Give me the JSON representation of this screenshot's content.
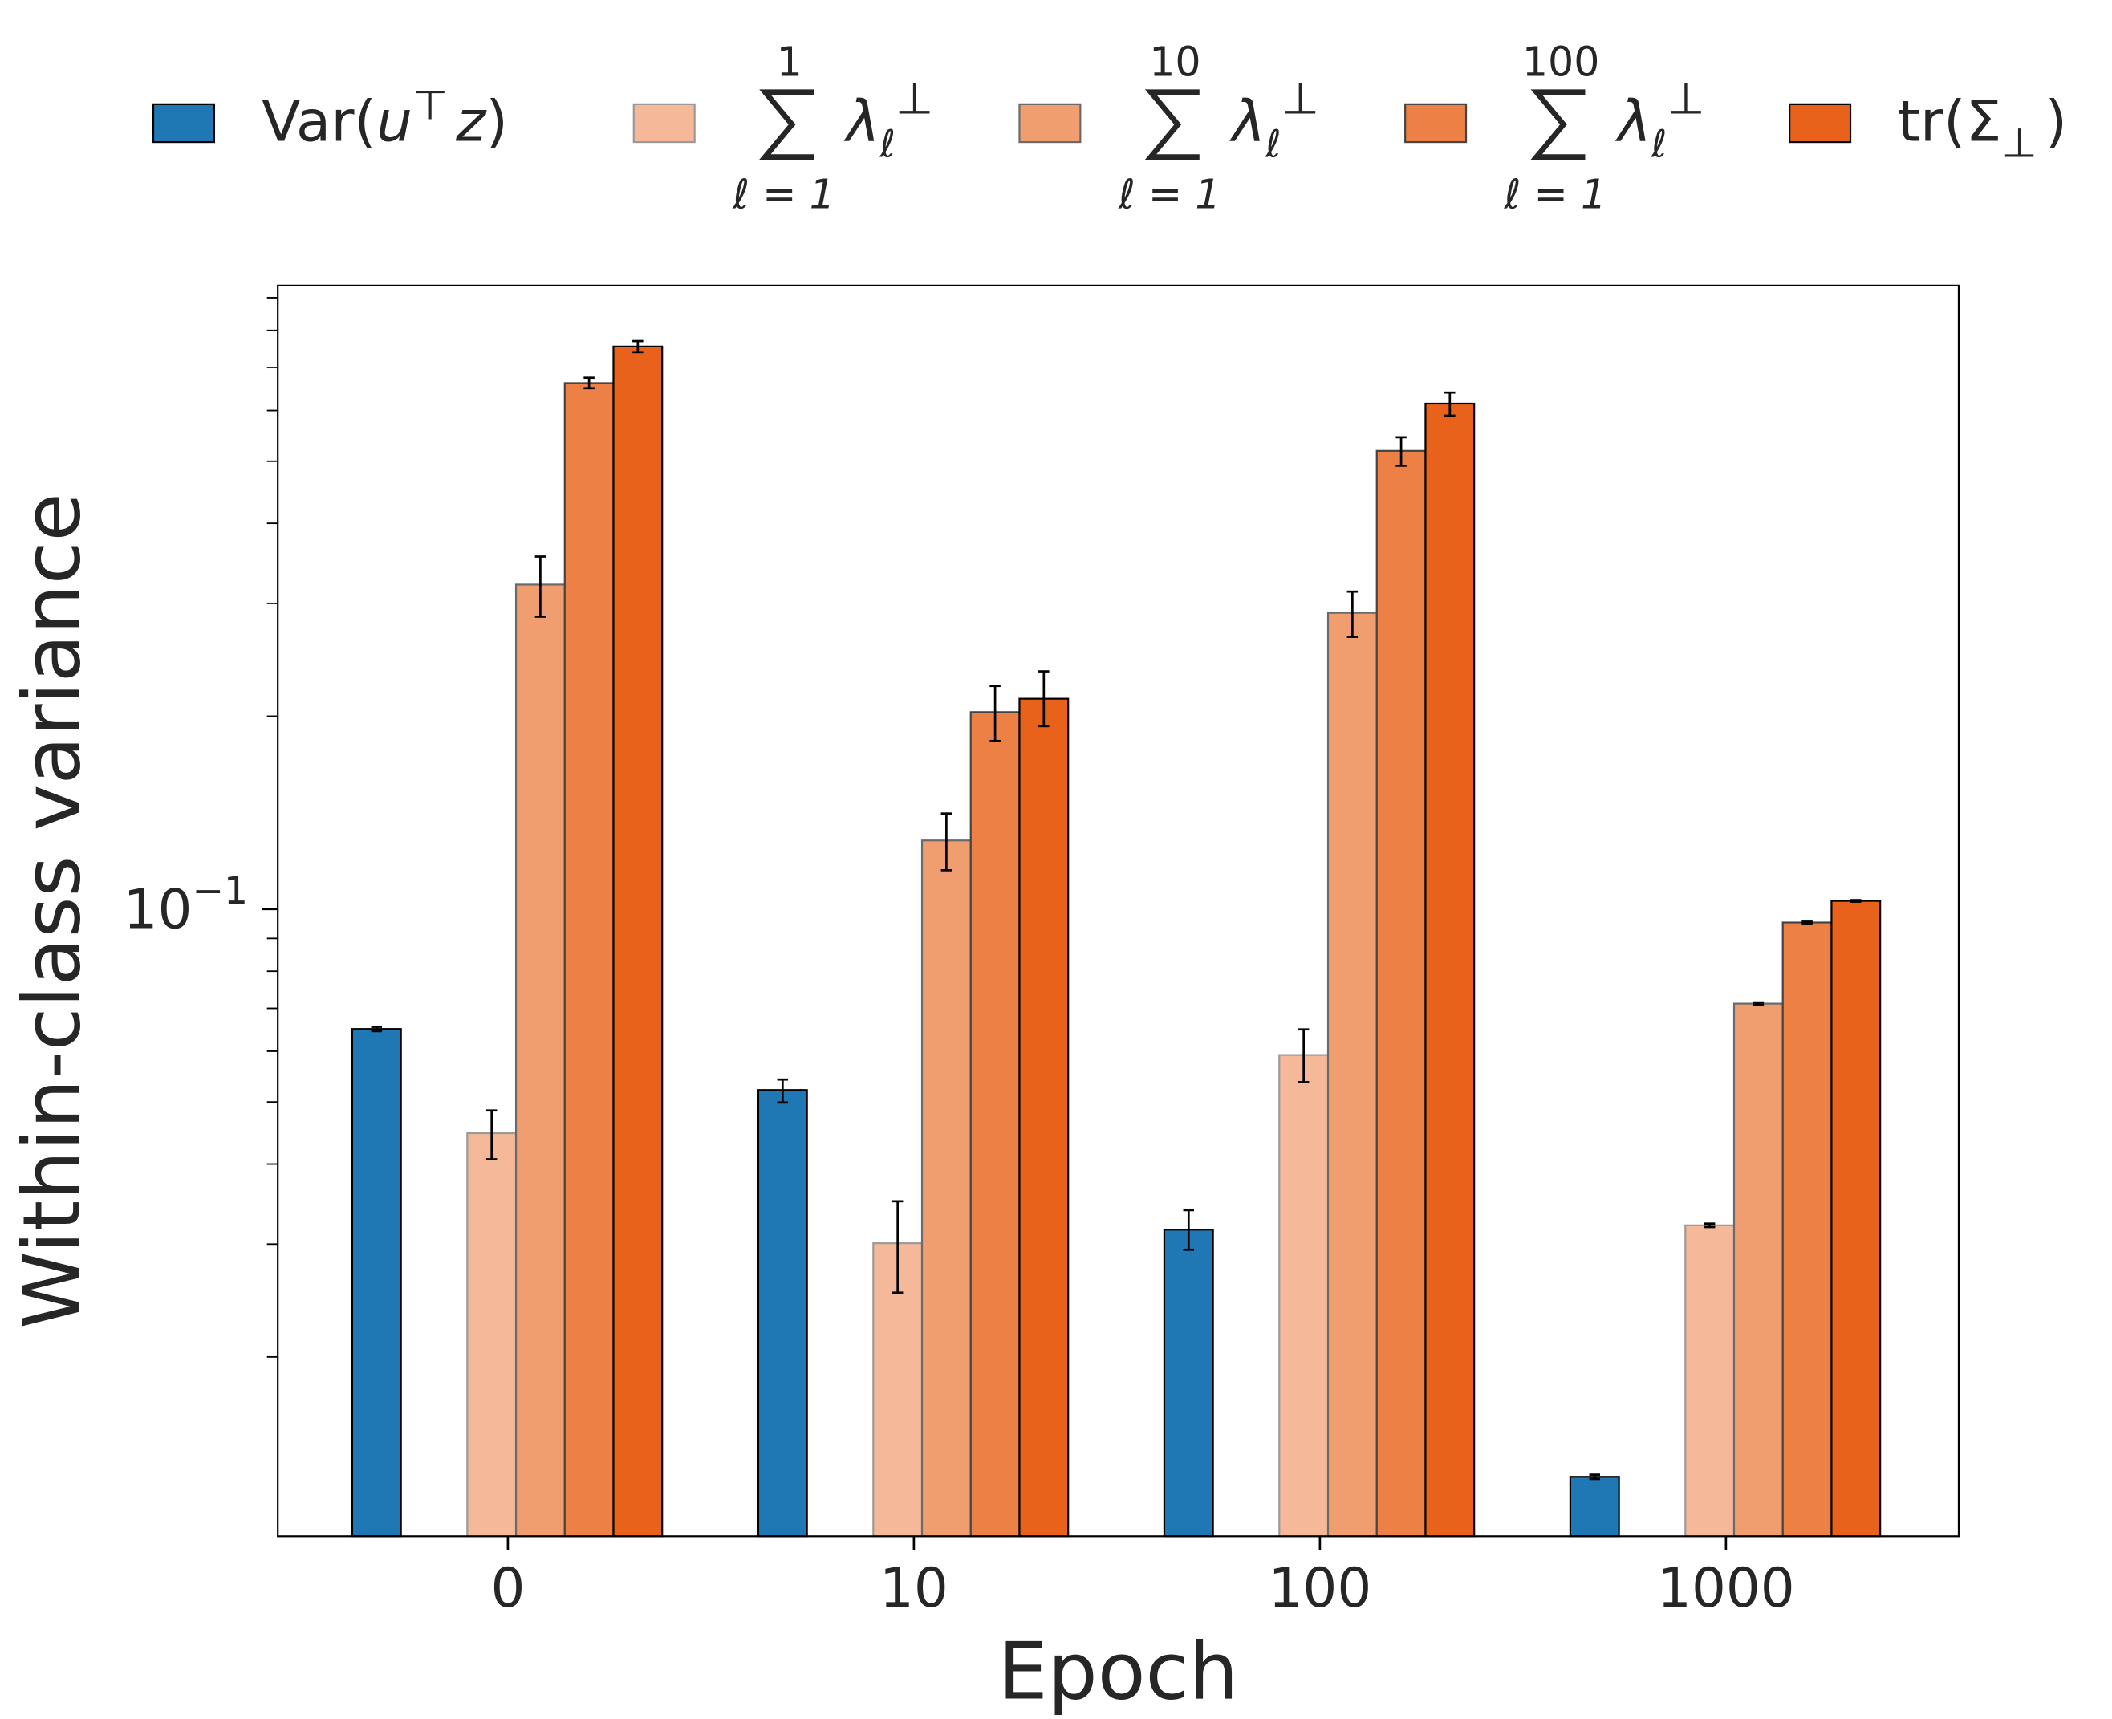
{
  "chart_data": {
    "type": "bar",
    "xlabel": "Epoch",
    "ylabel": "Within-class variance",
    "yscale": "log",
    "ylim": [
      0.0105,
      0.94
    ],
    "yticks": [
      {
        "value": 0.1,
        "label_base": "10",
        "label_exp": "−1"
      }
    ],
    "grid": false,
    "legend_placement": "top (outside, single row)",
    "categories": [
      "0",
      "10",
      "100",
      "1000"
    ],
    "series": [
      {
        "name": "Var(u⊤z)",
        "legend": {
          "kind": "text",
          "main": "Var(",
          "italic1": "u",
          "sup": "⊤",
          "italic2": "z",
          "end": ")"
        },
        "color": "#1f77b4",
        "edge": "#000000",
        "values": [
          0.065,
          0.0522,
          0.0316,
          0.013
        ],
        "err_low": [
          0.0645,
          0.0499,
          0.0294,
          0.0129
        ],
        "err_high": [
          0.0655,
          0.0542,
          0.0339,
          0.0131
        ]
      },
      {
        "name": "∑_{ℓ=1}^{1} λ_ℓ^⊥",
        "legend": {
          "kind": "sum",
          "upper": "1",
          "lower": "ℓ = 1",
          "body": "λ",
          "sub": "ℓ",
          "sup": "⊥"
        },
        "color": "#f5b999",
        "edge": "#9a9a9a",
        "values": [
          0.0447,
          0.0301,
          0.0592,
          0.0321
        ],
        "err_low": [
          0.0407,
          0.0252,
          0.0537,
          0.0319
        ],
        "err_high": [
          0.0485,
          0.035,
          0.0649,
          0.0323
        ]
      },
      {
        "name": "∑_{ℓ=1}^{10} λ_ℓ^⊥",
        "legend": {
          "kind": "sum",
          "upper": "10",
          "lower": "ℓ = 1",
          "body": "λ",
          "sub": "ℓ",
          "sup": "⊥"
        },
        "color": "#f09e6f",
        "edge": "#6a6a6a",
        "values": [
          0.321,
          0.128,
          0.29,
          0.0712
        ],
        "err_low": [
          0.286,
          0.115,
          0.266,
          0.0709
        ],
        "err_high": [
          0.355,
          0.141,
          0.313,
          0.0715
        ]
      },
      {
        "name": "∑_{ℓ=1}^{100} λ_ℓ^⊥",
        "legend": {
          "kind": "sum",
          "upper": "100",
          "lower": "ℓ = 1",
          "body": "λ",
          "sub": "ℓ",
          "sup": "⊥"
        },
        "color": "#ed8145",
        "edge": "#444444",
        "values": [
          0.662,
          0.203,
          0.519,
          0.0953
        ],
        "err_low": [
          0.65,
          0.183,
          0.492,
          0.095
        ],
        "err_high": [
          0.675,
          0.223,
          0.545,
          0.0956
        ]
      },
      {
        "name": "tr(Σ⊥)",
        "legend": {
          "kind": "text",
          "main": "tr(Σ",
          "sub": "⊥",
          "end": ")"
        },
        "color": "#e8621c",
        "edge": "#000000",
        "values": [
          0.755,
          0.213,
          0.615,
          0.103
        ],
        "err_low": [
          0.74,
          0.193,
          0.589,
          0.1027
        ],
        "err_high": [
          0.77,
          0.235,
          0.64,
          0.1033
        ]
      }
    ]
  }
}
